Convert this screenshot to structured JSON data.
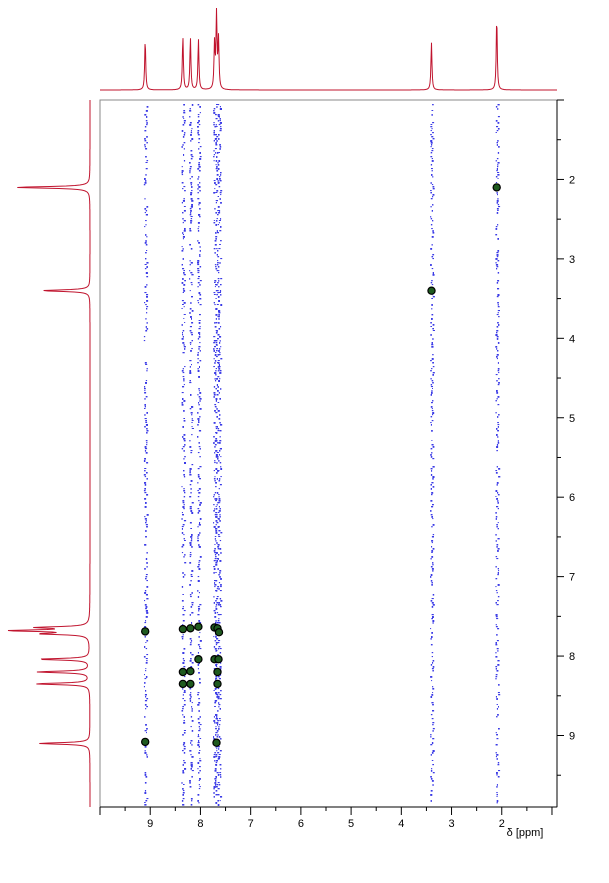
{
  "chart_data": {
    "type": "scatter",
    "title": "",
    "xlabel": "δ [ppm]",
    "ylabel": "",
    "x_axis": {
      "range": [
        10,
        0.9
      ],
      "reversed": true,
      "ticks": [
        9,
        8,
        7,
        6,
        5,
        4,
        3,
        2
      ],
      "tick_labels": [
        "9",
        "8",
        "7",
        "6",
        "5",
        "4",
        "3",
        "2"
      ]
    },
    "y_axis": {
      "range": [
        1.0,
        9.9
      ],
      "reversed": true,
      "position": "right",
      "ticks": [
        2,
        3,
        4,
        5,
        6,
        7,
        8,
        9
      ],
      "tick_labels": [
        "2",
        "3",
        "4",
        "5",
        "6",
        "7",
        "8",
        "9"
      ]
    },
    "grid": false,
    "legend": "none",
    "colors": {
      "projection": "#c0142e",
      "noise": "#3a3ae6",
      "peak_fill": "#1f5a1f",
      "peak_stroke": "#000000",
      "frame": "#8a8a8a",
      "axis": "#000000"
    },
    "projection_peaks": [
      {
        "shift": 9.1,
        "intensity": 0.62
      },
      {
        "shift": 8.35,
        "intensity": 0.66
      },
      {
        "shift": 8.2,
        "intensity": 0.64
      },
      {
        "shift": 8.04,
        "intensity": 0.62
      },
      {
        "shift": 7.72,
        "intensity": 0.55
      },
      {
        "shift": 7.68,
        "intensity": 0.95
      },
      {
        "shift": 7.64,
        "intensity": 0.6
      },
      {
        "shift": 3.4,
        "intensity": 0.58
      },
      {
        "shift": 2.1,
        "intensity": 0.9
      }
    ],
    "noise_columns": [
      9.1,
      8.35,
      8.2,
      8.04,
      7.72,
      7.68,
      7.63,
      3.4,
      2.1
    ],
    "series": [
      {
        "x": [
          2.1,
          3.4,
          9.1,
          8.35,
          8.2,
          8.04,
          7.72,
          7.66,
          7.63,
          8.04,
          7.72,
          7.64,
          8.35,
          8.2,
          7.66,
          8.35,
          8.2,
          7.66,
          9.1,
          7.68
        ],
        "y": [
          2.1,
          3.4,
          7.69,
          7.66,
          7.65,
          7.63,
          7.64,
          7.65,
          7.7,
          8.04,
          8.04,
          8.04,
          8.2,
          8.19,
          8.2,
          8.35,
          8.35,
          8.35,
          9.08,
          9.09
        ]
      }
    ]
  }
}
